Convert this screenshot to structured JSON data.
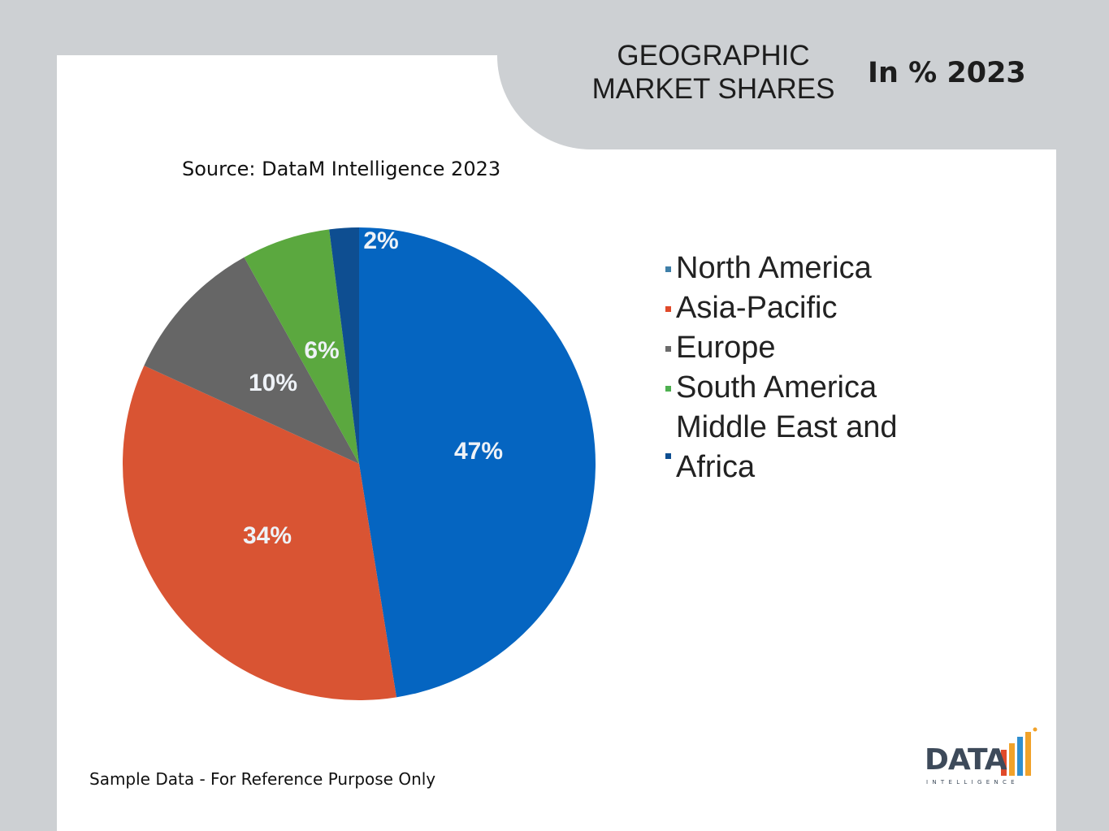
{
  "header": {
    "title": "GEOGRAPHIC\nMARKET SHARES",
    "unit": "In % 2023"
  },
  "source": "Source: DataM Intelligence 2023",
  "footnote": "Sample Data - For Reference Purpose Only",
  "logo": {
    "word": "DATA",
    "sub": "INTELLIGENCE"
  },
  "chart_data": {
    "type": "pie",
    "labels": [
      "North America",
      "Asia-Pacific",
      "Europe",
      "South America",
      "Middle East and Africa"
    ],
    "legend_labels": [
      "North America",
      "Asia-Pacific",
      "Europe",
      "South America",
      "Middle East and\nAfrica"
    ],
    "values": [
      47,
      34,
      10,
      6,
      2
    ],
    "data_labels": [
      "47%",
      "34%",
      "10%",
      "6%",
      "2%"
    ],
    "colors": [
      "#0565c1",
      "#d95433",
      "#666666",
      "#5ba83f",
      "#0e4e91"
    ],
    "legend_marker_colors": [
      "#3f7fa8",
      "#e04a2a",
      "#6b6b6b",
      "#4eb050",
      "#0e4e91"
    ],
    "legend_position": "right",
    "start_angle_deg": 0,
    "direction": "clockwise"
  },
  "colors": {
    "background": "#cdd0d3",
    "card": "#ffffff",
    "logo_text": "#3d4a5a"
  }
}
